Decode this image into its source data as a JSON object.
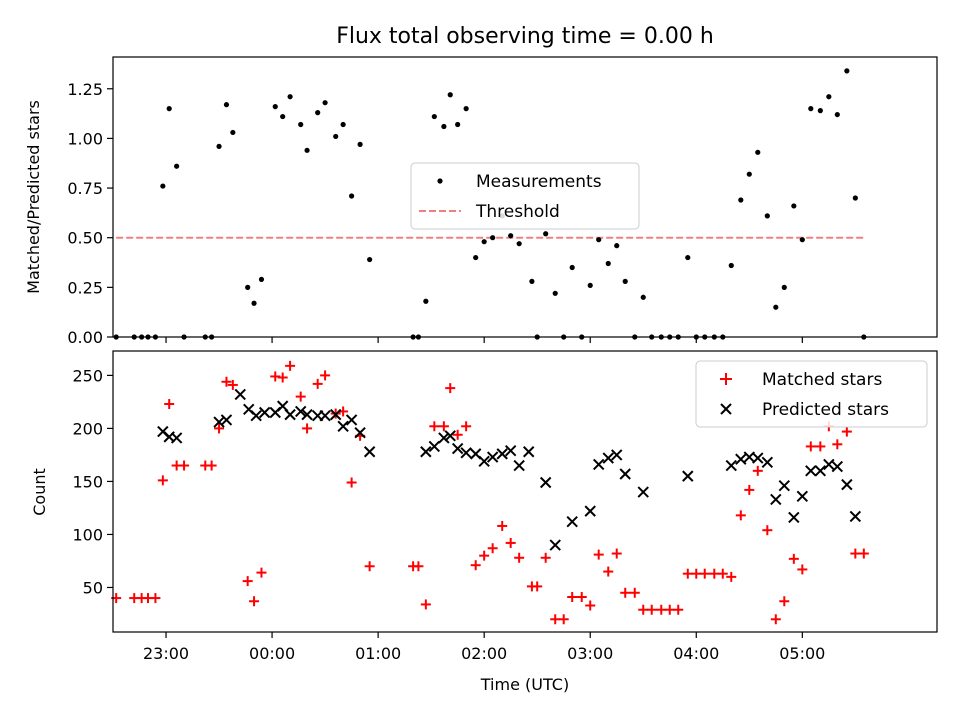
{
  "chart_data": [
    {
      "type": "scatter",
      "title": "Flux total observing time = 0.00 h",
      "xlabel": "",
      "ylabel": "Matched/Predicted stars",
      "x_axis_unit": "hours relative to 00:00 UTC",
      "xlim": [
        -1.5,
        6.27
      ],
      "ylim": [
        0,
        1.41
      ],
      "yticks": [
        "0.00",
        "0.25",
        "0.50",
        "0.75",
        "1.00",
        "1.25"
      ],
      "legend_position": "center",
      "threshold": {
        "name": "Threshold",
        "value": 0.5,
        "x_range": [
          -1.47,
          5.6
        ],
        "color": "#f08080"
      },
      "series": [
        {
          "name": "Measurements",
          "color": "#000000",
          "points": [
            [
              -1.47,
              0.0
            ],
            [
              -1.3,
              0.0
            ],
            [
              -1.23,
              0.0
            ],
            [
              -1.17,
              0.0
            ],
            [
              -1.1,
              0.0
            ],
            [
              -1.03,
              0.76
            ],
            [
              -0.97,
              1.15
            ],
            [
              -0.9,
              0.86
            ],
            [
              -0.83,
              0.0
            ],
            [
              -0.63,
              0.0
            ],
            [
              -0.57,
              0.0
            ],
            [
              -0.5,
              0.96
            ],
            [
              -0.43,
              1.17
            ],
            [
              -0.37,
              1.03
            ],
            [
              -0.23,
              0.25
            ],
            [
              -0.17,
              0.17
            ],
            [
              -0.1,
              0.29
            ],
            [
              0.03,
              1.16
            ],
            [
              0.1,
              1.11
            ],
            [
              0.17,
              1.21
            ],
            [
              0.27,
              1.07
            ],
            [
              0.33,
              0.94
            ],
            [
              0.43,
              1.13
            ],
            [
              0.5,
              1.18
            ],
            [
              0.6,
              1.01
            ],
            [
              0.67,
              1.07
            ],
            [
              0.75,
              0.71
            ],
            [
              0.83,
              0.97
            ],
            [
              0.92,
              0.39
            ],
            [
              1.33,
              0.0
            ],
            [
              1.38,
              0.0
            ],
            [
              1.45,
              0.18
            ],
            [
              1.53,
              1.11
            ],
            [
              1.62,
              1.06
            ],
            [
              1.68,
              1.22
            ],
            [
              1.75,
              1.07
            ],
            [
              1.83,
              1.15
            ],
            [
              1.92,
              0.4
            ],
            [
              2.0,
              0.48
            ],
            [
              2.08,
              0.5
            ],
            [
              2.17,
              0.61
            ],
            [
              2.25,
              0.51
            ],
            [
              2.33,
              0.47
            ],
            [
              2.45,
              0.28
            ],
            [
              2.5,
              0.0
            ],
            [
              2.58,
              0.52
            ],
            [
              2.67,
              0.22
            ],
            [
              2.75,
              0.0
            ],
            [
              2.83,
              0.35
            ],
            [
              2.92,
              0.0
            ],
            [
              3.0,
              0.26
            ],
            [
              3.08,
              0.49
            ],
            [
              3.17,
              0.37
            ],
            [
              3.25,
              0.46
            ],
            [
              3.33,
              0.28
            ],
            [
              3.42,
              0.0
            ],
            [
              3.5,
              0.2
            ],
            [
              3.58,
              0.0
            ],
            [
              3.67,
              0.0
            ],
            [
              3.75,
              0.0
            ],
            [
              3.83,
              0.0
            ],
            [
              3.92,
              0.4
            ],
            [
              4.0,
              0.0
            ],
            [
              4.08,
              0.0
            ],
            [
              4.17,
              0.0
            ],
            [
              4.25,
              0.0
            ],
            [
              4.33,
              0.36
            ],
            [
              4.42,
              0.69
            ],
            [
              4.5,
              0.82
            ],
            [
              4.58,
              0.93
            ],
            [
              4.67,
              0.61
            ],
            [
              4.75,
              0.15
            ],
            [
              4.83,
              0.25
            ],
            [
              4.92,
              0.66
            ],
            [
              5.0,
              0.49
            ],
            [
              5.08,
              1.15
            ],
            [
              5.17,
              1.14
            ],
            [
              5.25,
              1.21
            ],
            [
              5.33,
              1.12
            ],
            [
              5.42,
              1.34
            ],
            [
              5.5,
              0.7
            ],
            [
              5.58,
              0.0
            ]
          ]
        }
      ]
    },
    {
      "type": "scatter",
      "title": "",
      "xlabel": "Time (UTC)",
      "ylabel": "Count",
      "x_axis_unit": "hours relative to 00:00 UTC",
      "xlim": [
        -1.5,
        6.27
      ],
      "ylim": [
        8,
        273
      ],
      "xticks": [
        {
          "value": -1,
          "label": "23:00"
        },
        {
          "value": 0,
          "label": "00:00"
        },
        {
          "value": 1,
          "label": "01:00"
        },
        {
          "value": 2,
          "label": "02:00"
        },
        {
          "value": 3,
          "label": "03:00"
        },
        {
          "value": 4,
          "label": "04:00"
        },
        {
          "value": 5,
          "label": "05:00"
        }
      ],
      "yticks": [
        "50",
        "100",
        "150",
        "200",
        "250"
      ],
      "legend_position": "upper right",
      "series": [
        {
          "name": "Matched stars",
          "marker": "plus",
          "color": "#ff0000",
          "points": [
            [
              -1.47,
              40
            ],
            [
              -1.3,
              40
            ],
            [
              -1.23,
              40
            ],
            [
              -1.17,
              40
            ],
            [
              -1.1,
              40
            ],
            [
              -1.03,
              151
            ],
            [
              -0.97,
              223
            ],
            [
              -0.9,
              165
            ],
            [
              -0.83,
              165
            ],
            [
              -0.63,
              165
            ],
            [
              -0.57,
              165
            ],
            [
              -0.5,
              200
            ],
            [
              -0.43,
              244
            ],
            [
              -0.37,
              241
            ],
            [
              -0.23,
              56
            ],
            [
              -0.17,
              37
            ],
            [
              -0.1,
              64
            ],
            [
              0.03,
              249
            ],
            [
              0.1,
              248
            ],
            [
              0.17,
              259
            ],
            [
              0.27,
              230
            ],
            [
              0.33,
              200
            ],
            [
              0.43,
              242
            ],
            [
              0.5,
              250
            ],
            [
              0.6,
              214
            ],
            [
              0.67,
              216
            ],
            [
              0.75,
              149
            ],
            [
              0.83,
              193
            ],
            [
              0.92,
              70
            ],
            [
              1.33,
              70
            ],
            [
              1.38,
              70
            ],
            [
              1.45,
              34
            ],
            [
              1.53,
              202
            ],
            [
              1.62,
              202
            ],
            [
              1.68,
              238
            ],
            [
              1.75,
              194
            ],
            [
              1.83,
              202
            ],
            [
              1.92,
              71
            ],
            [
              2.0,
              80
            ],
            [
              2.08,
              87
            ],
            [
              2.17,
              108
            ],
            [
              2.25,
              92
            ],
            [
              2.33,
              78
            ],
            [
              2.45,
              51
            ],
            [
              2.5,
              51
            ],
            [
              2.58,
              78
            ],
            [
              2.67,
              20
            ],
            [
              2.75,
              20
            ],
            [
              2.83,
              41
            ],
            [
              2.92,
              41
            ],
            [
              3.0,
              33
            ],
            [
              3.08,
              81
            ],
            [
              3.17,
              65
            ],
            [
              3.25,
              82
            ],
            [
              3.33,
              45
            ],
            [
              3.42,
              45
            ],
            [
              3.5,
              29
            ],
            [
              3.58,
              29
            ],
            [
              3.67,
              29
            ],
            [
              3.75,
              29
            ],
            [
              3.83,
              29
            ],
            [
              3.92,
              63
            ],
            [
              4.0,
              63
            ],
            [
              4.08,
              63
            ],
            [
              4.17,
              63
            ],
            [
              4.25,
              63
            ],
            [
              4.33,
              60
            ],
            [
              4.42,
              118
            ],
            [
              4.5,
              142
            ],
            [
              4.58,
              160
            ],
            [
              4.67,
              104
            ],
            [
              4.75,
              20
            ],
            [
              4.83,
              37
            ],
            [
              4.92,
              77
            ],
            [
              5.0,
              67
            ],
            [
              5.08,
              183
            ],
            [
              5.17,
              183
            ],
            [
              5.25,
              202
            ],
            [
              5.33,
              185
            ],
            [
              5.42,
              197
            ],
            [
              5.5,
              82
            ],
            [
              5.58,
              82
            ]
          ]
        },
        {
          "name": "Predicted stars",
          "marker": "x",
          "color": "#000000",
          "points": [
            [
              -1.03,
              197
            ],
            [
              -0.97,
              192
            ],
            [
              -0.9,
              191
            ],
            [
              -0.5,
              206
            ],
            [
              -0.43,
              208
            ],
            [
              -0.3,
              232
            ],
            [
              -0.22,
              218
            ],
            [
              -0.15,
              212
            ],
            [
              -0.07,
              215
            ],
            [
              0.03,
              215
            ],
            [
              0.1,
              221
            ],
            [
              0.17,
              213
            ],
            [
              0.27,
              216
            ],
            [
              0.33,
              213
            ],
            [
              0.43,
              212
            ],
            [
              0.5,
              212
            ],
            [
              0.6,
              213
            ],
            [
              0.67,
              202
            ],
            [
              0.75,
              208
            ],
            [
              0.83,
              196
            ],
            [
              0.92,
              178
            ],
            [
              1.45,
              178
            ],
            [
              1.53,
              183
            ],
            [
              1.62,
              191
            ],
            [
              1.68,
              193
            ],
            [
              1.75,
              181
            ],
            [
              1.83,
              177
            ],
            [
              1.92,
              176
            ],
            [
              2.0,
              169
            ],
            [
              2.08,
              173
            ],
            [
              2.17,
              176
            ],
            [
              2.25,
              179
            ],
            [
              2.33,
              165
            ],
            [
              2.42,
              178
            ],
            [
              2.58,
              149
            ],
            [
              2.67,
              90
            ],
            [
              2.83,
              112
            ],
            [
              3.0,
              122
            ],
            [
              3.08,
              166
            ],
            [
              3.17,
              172
            ],
            [
              3.25,
              175
            ],
            [
              3.33,
              157
            ],
            [
              3.5,
              140
            ],
            [
              3.92,
              155
            ],
            [
              4.33,
              165
            ],
            [
              4.42,
              171
            ],
            [
              4.5,
              173
            ],
            [
              4.58,
              172
            ],
            [
              4.67,
              168
            ],
            [
              4.75,
              133
            ],
            [
              4.83,
              146
            ],
            [
              4.92,
              116
            ],
            [
              5.0,
              136
            ],
            [
              5.08,
              160
            ],
            [
              5.17,
              160
            ],
            [
              5.25,
              166
            ],
            [
              5.33,
              164
            ],
            [
              5.42,
              147
            ],
            [
              5.5,
              117
            ]
          ]
        }
      ]
    }
  ]
}
